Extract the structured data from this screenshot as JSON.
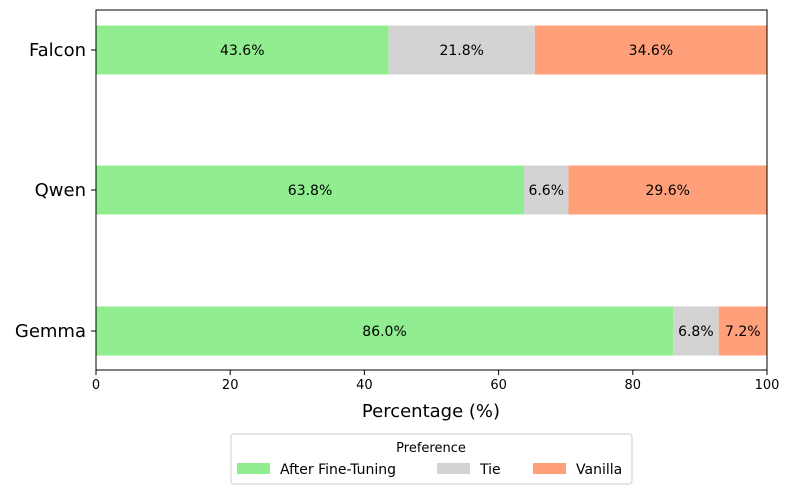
{
  "chart_data": {
    "type": "bar",
    "orientation": "horizontal",
    "stacked": true,
    "categories": [
      "Falcon",
      "Qwen",
      "Gemma"
    ],
    "series": [
      {
        "name": "After Fine-Tuning",
        "color": "#90ee90",
        "values": [
          43.6,
          63.8,
          86.0
        ],
        "labels": [
          "43.6%",
          "63.8%",
          "86.0%"
        ]
      },
      {
        "name": "Tie",
        "color": "#d3d3d3",
        "values": [
          21.8,
          6.6,
          6.8
        ],
        "labels": [
          "21.8%",
          "6.6%",
          "6.8%"
        ]
      },
      {
        "name": "Vanilla",
        "color": "#ffa07a",
        "values": [
          34.6,
          29.6,
          7.2
        ],
        "labels": [
          "34.6%",
          "29.6%",
          "7.2%"
        ]
      }
    ],
    "title": "",
    "xlabel": "Percentage (%)",
    "ylabel": "",
    "xlim": [
      0,
      100
    ],
    "xticks": [
      "0",
      "20",
      "40",
      "60",
      "80",
      "100"
    ],
    "grid": false,
    "legend": {
      "title": "Preference",
      "placement": "bottom-center",
      "columns": 3
    }
  }
}
